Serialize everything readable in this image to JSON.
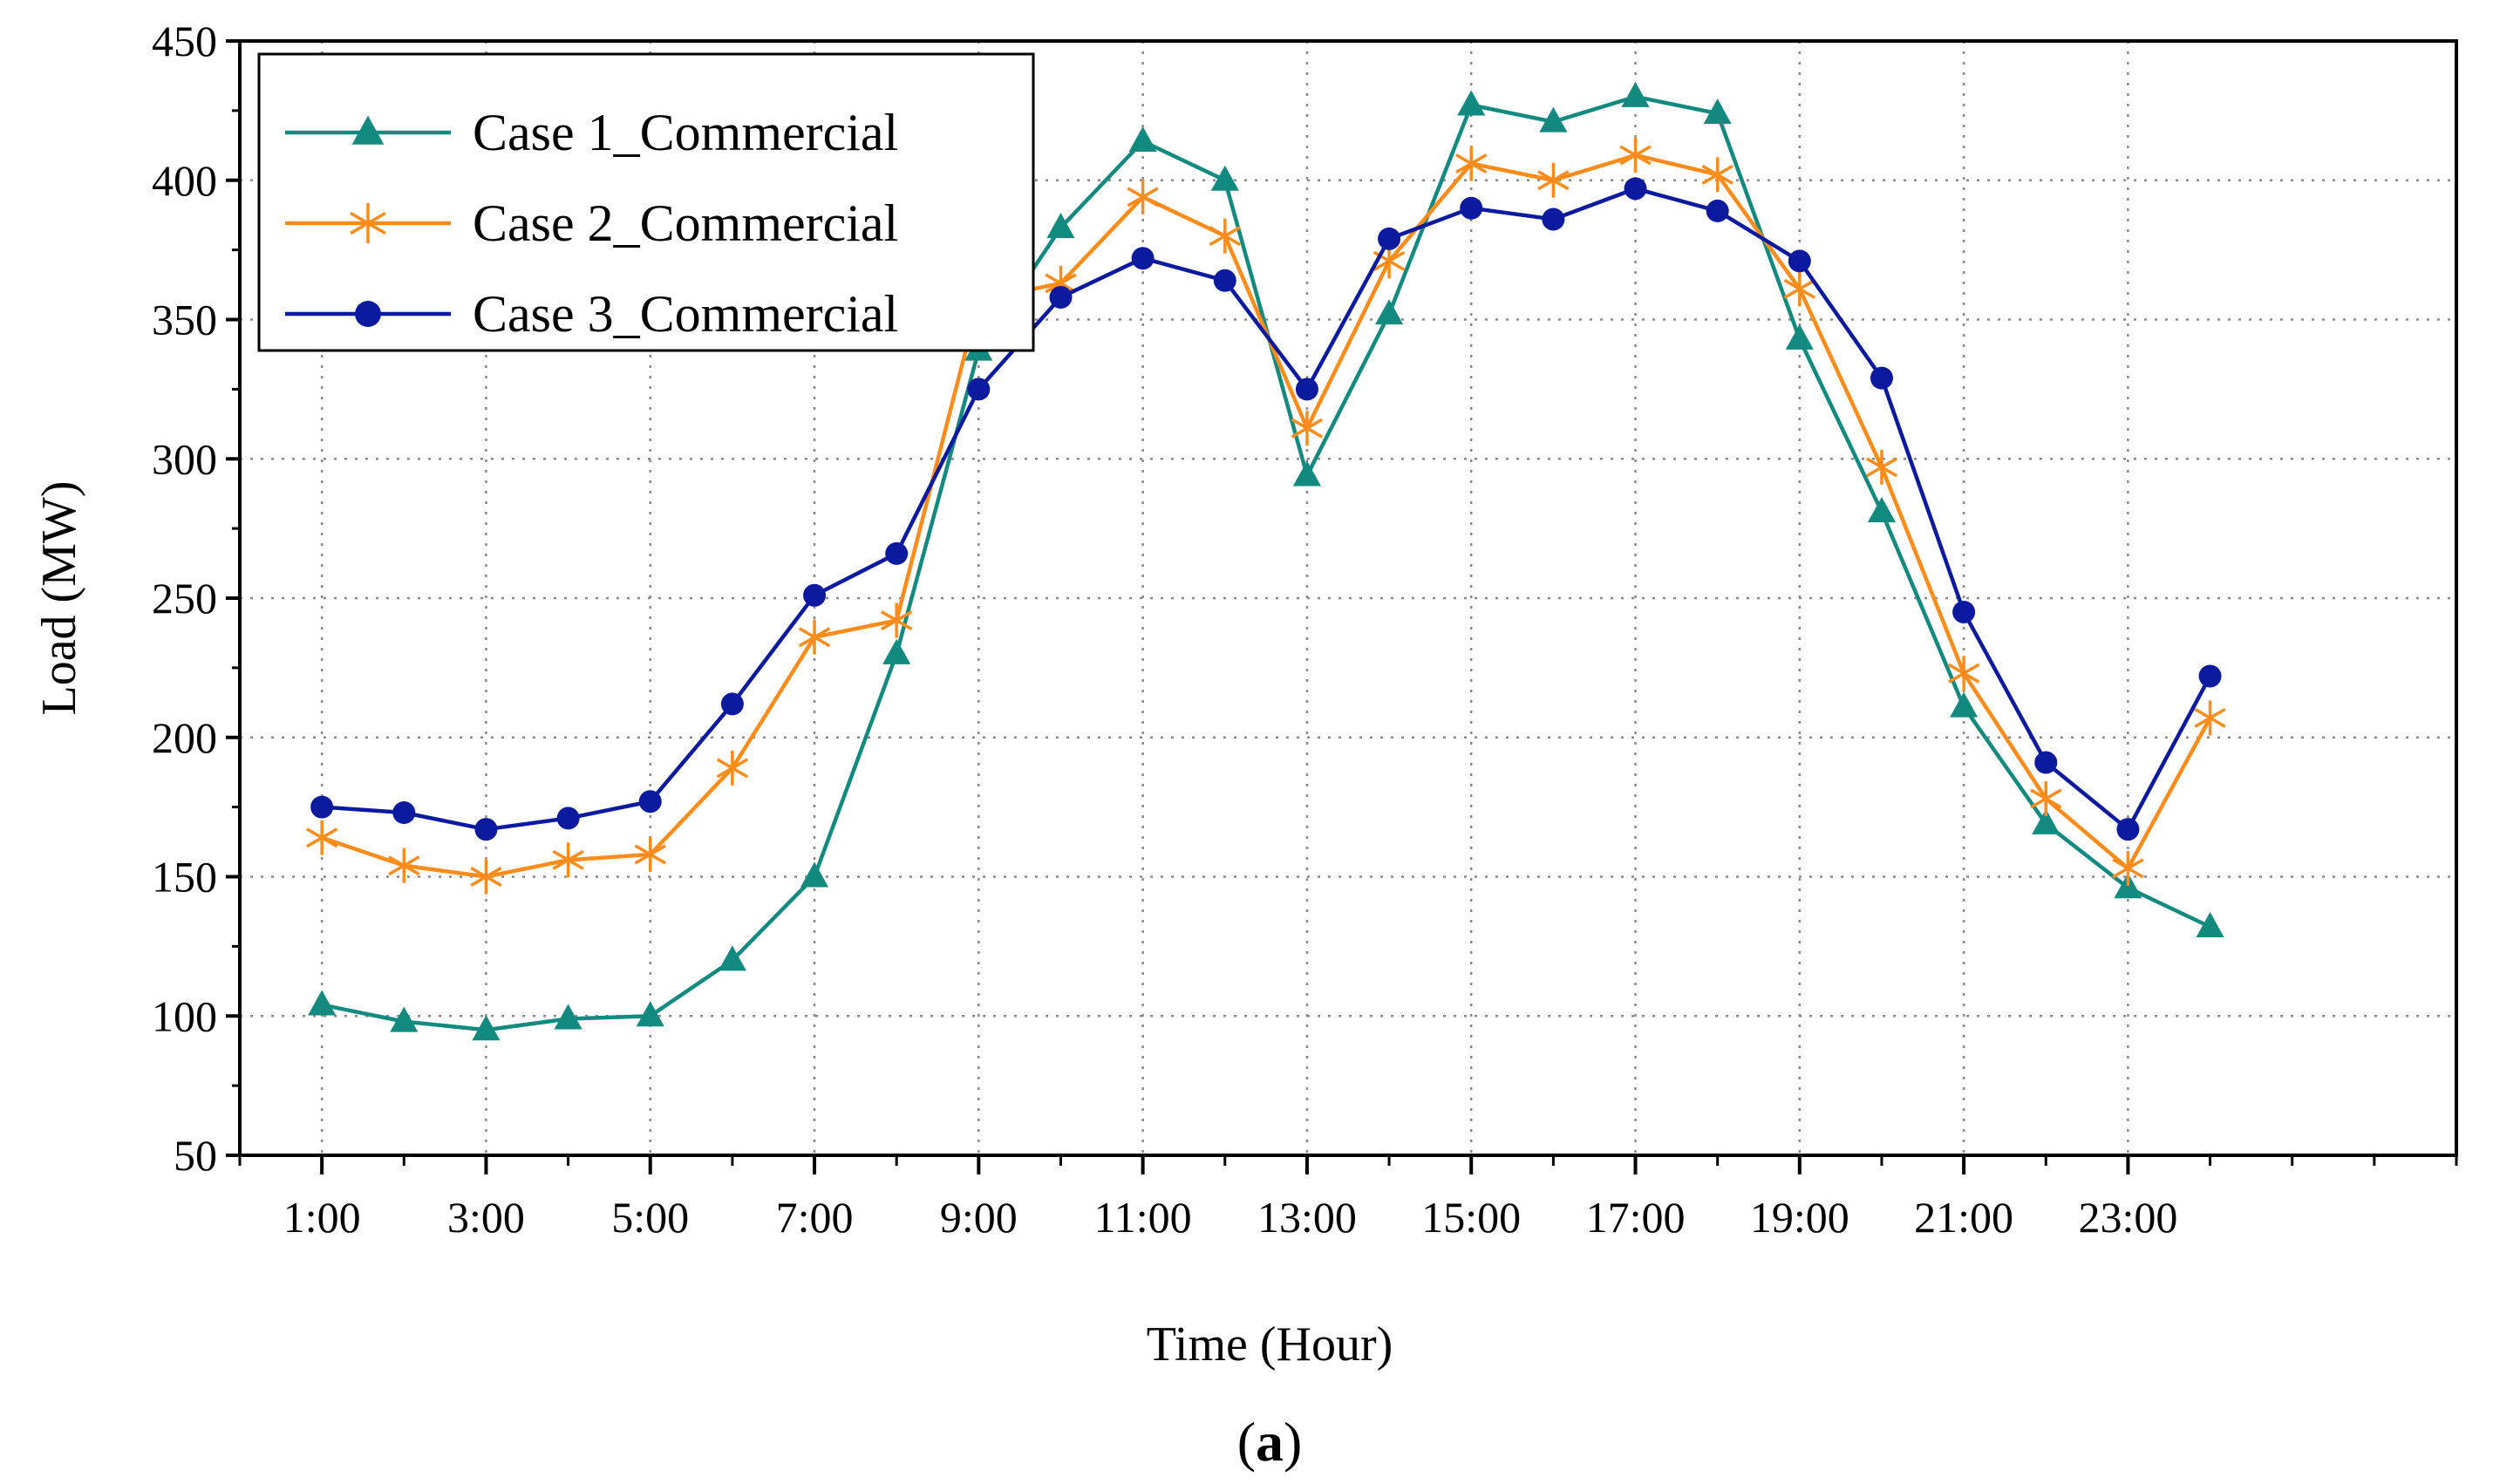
{
  "chart_data": {
    "type": "line",
    "panel_label": "(a)",
    "xlabel": "Time (Hour)",
    "ylabel": "Load (MW)",
    "ylim": [
      50,
      450
    ],
    "xlim": [
      -1,
      26
    ],
    "grid": true,
    "legend_position": "top-left",
    "x": [
      "1:00",
      "2:00",
      "3:00",
      "4:00",
      "5:00",
      "6:00",
      "7:00",
      "8:00",
      "9:00",
      "10:00",
      "11:00",
      "12:00",
      "13:00",
      "14:00",
      "15:00",
      "16:00",
      "17:00",
      "18:00",
      "19:00",
      "20:00",
      "21:00",
      "22:00",
      "23:00",
      "24:00"
    ],
    "x_tick_labels": [
      "1:00",
      "3:00",
      "5:00",
      "7:00",
      "9:00",
      "11:00",
      "13:00",
      "15:00",
      "17:00",
      "19:00",
      "21:00",
      "23:00"
    ],
    "y_ticks": [
      50,
      100,
      150,
      200,
      250,
      300,
      350,
      400,
      450
    ],
    "series": [
      {
        "name": "Case 1_Commercial",
        "color": "#138a80",
        "marker": "triangle",
        "values": [
          104,
          98,
          95,
          99,
          100,
          120,
          150,
          230,
          339,
          383,
          414,
          400,
          294,
          352,
          427,
          421,
          430,
          424,
          343,
          281,
          211,
          169,
          146,
          132
        ]
      },
      {
        "name": "Case 2_Commercial",
        "color": "#ff8c1a",
        "marker": "asterisk",
        "values": [
          164,
          154,
          150,
          156,
          158,
          189,
          236,
          242,
          357,
          363,
          394,
          380,
          311,
          371,
          406,
          400,
          409,
          402,
          361,
          297,
          223,
          178,
          153,
          207
        ]
      },
      {
        "name": "Case 3_Commercial",
        "color": "#0b1a9e",
        "marker": "circle",
        "values": [
          175,
          173,
          167,
          171,
          177,
          212,
          251,
          266,
          325,
          358,
          372,
          364,
          325,
          379,
          390,
          386,
          397,
          389,
          371,
          329,
          245,
          191,
          167,
          222
        ]
      }
    ]
  }
}
